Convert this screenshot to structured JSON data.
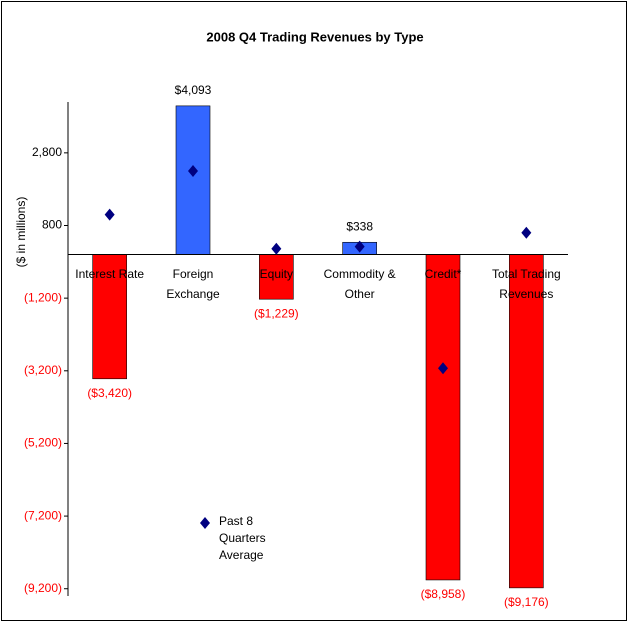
{
  "chart_data": {
    "type": "bar",
    "title": "2008 Q4 Trading Revenues by Type",
    "y_label": "($ in millions)",
    "categories": [
      "Interest Rate",
      "Foreign Exchange",
      "Equity",
      "Commodity & Other",
      "Credit*",
      "Total Trading Revenues"
    ],
    "values": [
      -3420,
      4093,
      -1229,
      338,
      -8958,
      -9176
    ],
    "value_labels": [
      "($3,420)",
      "$4,093",
      "($1,229)",
      "$338",
      "($8,958)",
      "($9,176)"
    ],
    "colors": [
      "#ff0000",
      "#3366ff",
      "#ff0000",
      "#3366ff",
      "#ff0000",
      "#ff0000"
    ],
    "negative_label_color": "#ff0000",
    "series": [
      {
        "name": "Past 8 Quarters Average",
        "color": "#000080",
        "values": [
          1100,
          2300,
          160,
          220,
          -3130,
          600
        ]
      }
    ],
    "ylim": [
      -9400,
      4200
    ],
    "yticks": [
      {
        "value": 2800,
        "label": "2,800"
      },
      {
        "value": 800,
        "label": "800"
      },
      {
        "value": -1200,
        "label": "(1,200)"
      },
      {
        "value": -3200,
        "label": "(3,200)"
      },
      {
        "value": -5200,
        "label": "(5,200)"
      },
      {
        "value": -7200,
        "label": "(7,200)"
      },
      {
        "value": -9200,
        "label": "(9,200)"
      }
    ],
    "legend": "lower-left"
  }
}
